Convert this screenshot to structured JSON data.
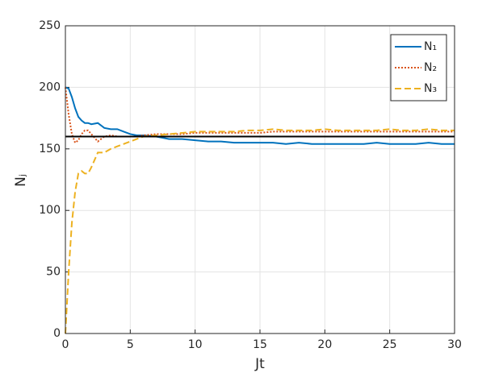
{
  "chart_data": {
    "type": "line",
    "xlabel": "Jt",
    "ylabel": "Nⱼ",
    "x": [
      0,
      0.25,
      0.5,
      0.75,
      1,
      1.25,
      1.5,
      1.75,
      2,
      2.5,
      3,
      3.5,
      4,
      4.5,
      5,
      5.5,
      6,
      7,
      8,
      9,
      10,
      11,
      12,
      13,
      14,
      15,
      16,
      17,
      18,
      19,
      20,
      21,
      22,
      23,
      24,
      25,
      26,
      27,
      28,
      29,
      30
    ],
    "series": [
      {
        "name": "N₁",
        "color": "#0072BD",
        "linestyle": "solid",
        "values": [
          200,
          199,
          192,
          183,
          176,
          173,
          171,
          171,
          170,
          171,
          167,
          166,
          166,
          164,
          162,
          161,
          161,
          160,
          158,
          158,
          157,
          156,
          156,
          155,
          155,
          155,
          155,
          154,
          155,
          154,
          154,
          154,
          154,
          154,
          155,
          154,
          154,
          154,
          155,
          154,
          154
        ]
      },
      {
        "name": "N₂",
        "color": "#D95319",
        "linestyle": "dotted",
        "values": [
          200,
          178,
          162,
          155,
          157,
          162,
          165,
          165,
          162,
          156,
          160,
          161,
          160,
          160,
          160,
          160,
          161,
          162,
          162,
          162,
          163,
          163,
          163,
          163,
          163,
          163,
          164,
          164,
          164,
          164,
          164,
          164,
          164,
          164,
          164,
          164,
          164,
          164,
          164,
          164,
          164
        ]
      },
      {
        "name": "N₃",
        "color": "#EDB120",
        "linestyle": "dashed",
        "values": [
          0,
          50,
          90,
          115,
          130,
          132,
          130,
          130,
          135,
          147,
          147,
          150,
          152,
          154,
          156,
          158,
          160,
          161,
          162,
          163,
          164,
          164,
          164,
          164,
          165,
          165,
          166,
          165,
          165,
          165,
          166,
          165,
          165,
          165,
          165,
          166,
          165,
          165,
          166,
          165,
          165
        ]
      }
    ],
    "hline": {
      "value": 160,
      "color": "#000000"
    },
    "xlim": [
      0,
      30
    ],
    "xticks": [
      0,
      5,
      10,
      15,
      20,
      25,
      30
    ],
    "ylim": [
      0,
      250
    ],
    "yticks": [
      0,
      50,
      100,
      150,
      200,
      250
    ],
    "grid": true,
    "legend": "upper right"
  }
}
